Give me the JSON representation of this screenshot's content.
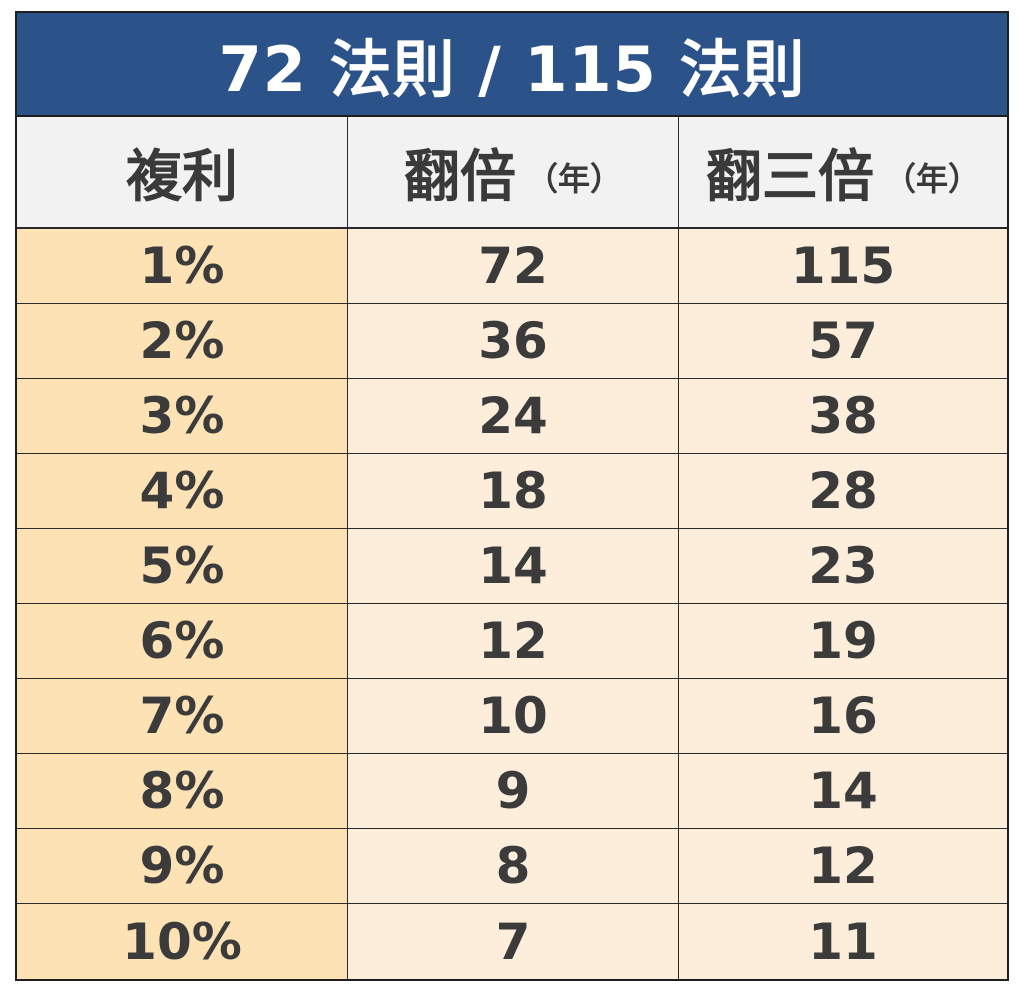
{
  "title": "72 法則 / 115 法則",
  "headers": {
    "rate": "複利",
    "double": "翻倍",
    "double_unit": "（年）",
    "triple": "翻三倍",
    "triple_unit": "（年）"
  },
  "rows": [
    {
      "rate": "1%",
      "double": "72",
      "triple": "115"
    },
    {
      "rate": "2%",
      "double": "36",
      "triple": "57"
    },
    {
      "rate": "3%",
      "double": "24",
      "triple": "38"
    },
    {
      "rate": "4%",
      "double": "18",
      "triple": "28"
    },
    {
      "rate": "5%",
      "double": "14",
      "triple": "23"
    },
    {
      "rate": "6%",
      "double": "12",
      "triple": "19"
    },
    {
      "rate": "7%",
      "double": "10",
      "triple": "16"
    },
    {
      "rate": "8%",
      "double": "9",
      "triple": "14"
    },
    {
      "rate": "9%",
      "double": "8",
      "triple": "12"
    },
    {
      "rate": "10%",
      "double": "7",
      "triple": "11"
    }
  ],
  "colors": {
    "title_background": "#2b5389",
    "header_background": "#f2f2f2",
    "rate_column_background": "#fde2b6",
    "value_background": "#fdeedb",
    "text": "#3b3b3b"
  }
}
